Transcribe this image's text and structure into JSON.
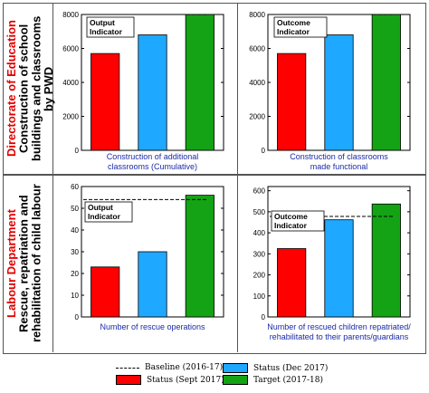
{
  "rows": [
    {
      "department": "Directorate of Education",
      "task": [
        "Construction of school",
        "buildings and classrooms",
        "by PWD"
      ]
    },
    {
      "department": "Labour Department",
      "task": [
        "Rescue, repatriation and",
        "rehabilitation of child labour"
      ]
    }
  ],
  "colors": {
    "status_sept": "#ff0000",
    "status_dec": "#1fa8ff",
    "target": "#14a314",
    "baseline": "#000000",
    "caption": "#1a2aa8"
  },
  "legend": {
    "baseline": "Baseline (2016-17)",
    "status_sept": "Status (Sept 2017)",
    "status_dec": "Status (Dec 2017)",
    "target": "Target (2017-18)"
  },
  "chart_data": [
    {
      "type": "bar",
      "tag": "Output Indicator",
      "caption": [
        "Construction of additional",
        "classrooms (Cumulative)"
      ],
      "categories": [
        "Status (Sept 2017)",
        "Status (Dec 2017)",
        "Target (2017-18)"
      ],
      "values": [
        5700,
        6800,
        8000
      ],
      "baseline": 8000,
      "ylim": [
        0,
        8000
      ],
      "yticks": [
        0,
        2000,
        4000,
        6000,
        8000
      ]
    },
    {
      "type": "bar",
      "tag": "Outcome Indicator",
      "caption": [
        "Construction of  classrooms",
        "made functional"
      ],
      "categories": [
        "Status (Sept 2017)",
        "Status (Dec 2017)",
        "Target (2017-18)"
      ],
      "values": [
        5700,
        6800,
        8000
      ],
      "baseline": 8000,
      "ylim": [
        0,
        8000
      ],
      "yticks": [
        0,
        2000,
        4000,
        6000,
        8000
      ]
    },
    {
      "type": "bar",
      "tag": "Output Indicator",
      "caption": [
        "Number of rescue operations"
      ],
      "categories": [
        "Status (Sept 2017)",
        "Status (Dec 2017)",
        "Target (2017-18)"
      ],
      "values": [
        23,
        30,
        56
      ],
      "baseline": 54,
      "ylim": [
        0,
        60
      ],
      "yticks": [
        0,
        10,
        20,
        30,
        40,
        50,
        60
      ]
    },
    {
      "type": "bar",
      "tag": "Outcome Indicator",
      "caption": [
        "Number of rescued children repatriated/",
        "rehabilitated to their parents/guardians"
      ],
      "categories": [
        "Status (Sept 2017)",
        "Status (Dec 2017)",
        "Target (2017-18)"
      ],
      "values": [
        325,
        462,
        537
      ],
      "baseline": 478,
      "ylim": [
        0,
        620
      ],
      "yticks": [
        0,
        100,
        200,
        300,
        400,
        500,
        600
      ]
    }
  ]
}
